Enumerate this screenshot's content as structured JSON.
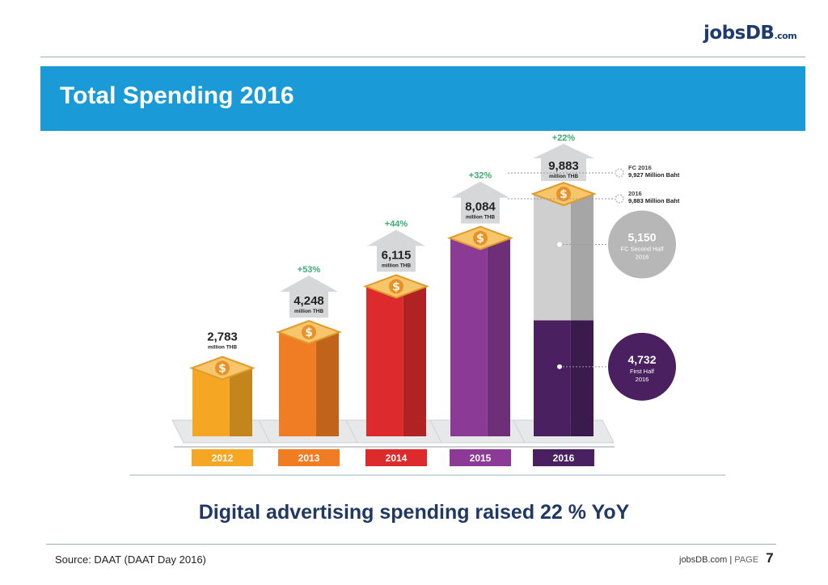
{
  "brand": {
    "logo_main": "jobs",
    "logo_db": "DB",
    "logo_suffix": ".com"
  },
  "slide": {
    "title": "Total Spending 2016",
    "headline": "Digital advertising spending raised 22 % YoY",
    "source": "Source:  DAAT  (DAAT Day 2016)",
    "footer_site": "jobsDB.com",
    "footer_sep": "|",
    "footer_page_label": "PAGE",
    "page_number": "7"
  },
  "colors": {
    "banner": "#1a9bd7",
    "growth_green": "#3bab73",
    "y2012": "#f5a623",
    "y2013": "#f07d23",
    "y2014": "#dd2a2c",
    "y2015": "#8b3a96",
    "y2016_first": "#4a2060",
    "y2016_second": "#cfcfcf"
  },
  "chart_data": {
    "type": "bar",
    "categories": [
      "2012",
      "2013",
      "2014",
      "2015",
      "2016"
    ],
    "values": [
      2783,
      4248,
      6115,
      8084,
      9883
    ],
    "value_labels": [
      "2,783",
      "4,248",
      "6,115",
      "8,084",
      "9,883"
    ],
    "unit_label": "million THB",
    "growth_labels": [
      "",
      "+53%",
      "+44%",
      "+32%",
      "+22%"
    ],
    "stack_2016": [
      {
        "value": 4732,
        "label": "4,732",
        "caption_line1": "First Half",
        "caption_line2": "2016"
      },
      {
        "value": 5150,
        "label": "5,150",
        "caption_line1": "FC Second Half",
        "caption_line2": "2016"
      }
    ],
    "annotations": [
      {
        "title": "FC 2016",
        "text": "9,927 Million Baht"
      },
      {
        "title": "2016",
        "text": "9,883 Million Baht"
      }
    ],
    "ylim": [
      0,
      10500
    ]
  }
}
